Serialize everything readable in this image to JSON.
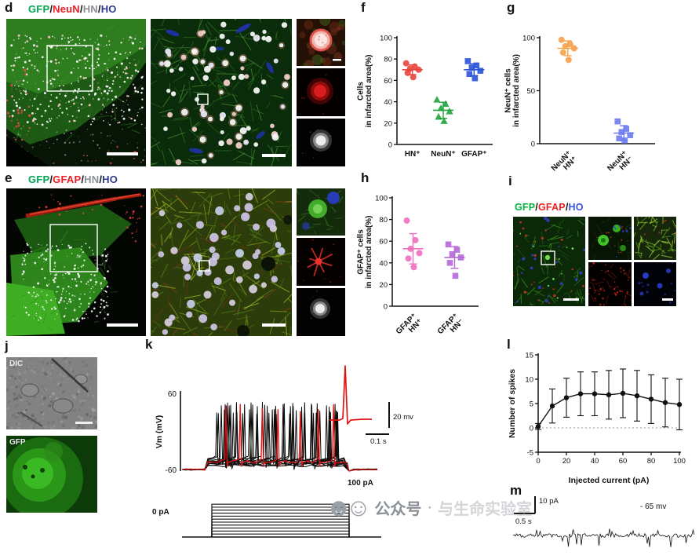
{
  "figure": {
    "background": "#ffffff",
    "panels": {
      "d": {
        "label": "d",
        "title": [
          {
            "text": "GFP",
            "color": "#00a651"
          },
          {
            "text": "/",
            "color": "#111111"
          },
          {
            "text": "NeuN",
            "color": "#ec1c24"
          },
          {
            "text": "/",
            "color": "#111111"
          },
          {
            "text": "HN",
            "color": "#8c8f93"
          },
          {
            "text": "/",
            "color": "#111111"
          },
          {
            "text": "HO",
            "color": "#2b3990"
          }
        ]
      },
      "e": {
        "label": "e",
        "title": [
          {
            "text": "GFP",
            "color": "#00a651"
          },
          {
            "text": "/",
            "color": "#111111"
          },
          {
            "text": "GFAP",
            "color": "#ec1c24"
          },
          {
            "text": "/",
            "color": "#111111"
          },
          {
            "text": "HN",
            "color": "#8c8f93"
          },
          {
            "text": "/",
            "color": "#111111"
          },
          {
            "text": "HO",
            "color": "#2b3990"
          }
        ]
      },
      "f": {
        "label": "f"
      },
      "g": {
        "label": "g"
      },
      "h": {
        "label": "h"
      },
      "i": {
        "label": "i",
        "title": [
          {
            "text": "GFP",
            "color": "#00b43c"
          },
          {
            "text": "/",
            "color": "#111111"
          },
          {
            "text": "GFAP",
            "color": "#ee2222"
          },
          {
            "text": "/",
            "color": "#111111"
          },
          {
            "text": "HO",
            "color": "#3a50e8"
          }
        ]
      },
      "j": {
        "label": "j",
        "dic_label": "DIC",
        "gfp_label": "GFP"
      },
      "k": {
        "label": "k",
        "y_axis_label": "Vm (mV)",
        "y_top_tick": "60",
        "y_bottom_tick": "-60",
        "inset_scale_voltage": "20 mv",
        "inset_scale_time": "0.1 s",
        "current_top_label": "100 pA",
        "current_base_label": "0 pA"
      },
      "l": {
        "label": "l"
      },
      "m": {
        "label": "m",
        "scale_current": "10 pA",
        "scale_time": "0.5 s",
        "baseline_label": "- 65 mv"
      }
    },
    "watermark": {
      "icons": "☻☺",
      "text": "公众号",
      "separator": "·",
      "faint_text": "与生命实验室"
    }
  },
  "chart_data": [
    {
      "id": "f",
      "type": "scatter",
      "title": "",
      "ylabel": "Cells\nin infarcted area(%)",
      "xlabel": "",
      "ylim": [
        0,
        100
      ],
      "yticks": [
        0,
        20,
        40,
        60,
        80,
        100
      ],
      "rotate_labels": false,
      "groups": [
        {
          "label": "HN⁺",
          "marker": "circle",
          "color": "#e8453c",
          "values": [
            76,
            73,
            71,
            70,
            67,
            63
          ],
          "mean": 70,
          "sd": 4.5
        },
        {
          "label": "NeuN⁺",
          "marker": "triangle",
          "color": "#1fa33c",
          "values": [
            42,
            38,
            34,
            31,
            26,
            22
          ],
          "mean": 32,
          "sd": 7.5
        },
        {
          "label": "GFAP⁺",
          "marker": "square",
          "color": "#2a52d8",
          "values": [
            78,
            74,
            72,
            69,
            66,
            62
          ],
          "mean": 70,
          "sd": 5.5
        }
      ]
    },
    {
      "id": "g",
      "type": "scatter",
      "title": "",
      "ylabel": "NeuN⁺ cells\nin infarcted area(%)",
      "xlabel": "",
      "ylim": [
        0,
        100
      ],
      "yticks": [
        0,
        50,
        100
      ],
      "rotate_labels": true,
      "groups": [
        {
          "label": "NeuN⁺\nHN⁺",
          "marker": "circle",
          "color": "#f6a14a",
          "values": [
            98,
            94,
            92,
            90,
            86,
            79
          ],
          "mean": 90,
          "sd": 7
        },
        {
          "label": "NeuN⁺\nHN⁻",
          "marker": "square",
          "color": "#6b7bf0",
          "values": [
            21,
            14,
            11,
            8,
            5,
            3
          ],
          "mean": 10,
          "sd": 7
        }
      ]
    },
    {
      "id": "h",
      "type": "scatter",
      "title": "",
      "ylabel": "GFAP⁺ cells\nin infarcted area(%)",
      "xlabel": "",
      "ylim": [
        0,
        100
      ],
      "yticks": [
        0,
        20,
        40,
        60,
        80,
        100
      ],
      "rotate_labels": true,
      "groups": [
        {
          "label": "GFAP⁺\nHN⁺",
          "marker": "circle",
          "color": "#ef6fc0",
          "values": [
            79,
            61,
            53,
            49,
            44,
            36
          ],
          "mean": 53,
          "sd": 14
        },
        {
          "label": "GFAP⁺\nHN⁻",
          "marker": "square",
          "color": "#b468d6",
          "values": [
            57,
            52,
            48,
            45,
            40,
            28
          ],
          "mean": 45,
          "sd": 10
        }
      ]
    },
    {
      "id": "l",
      "type": "line",
      "title": "",
      "xlabel": "Injected current (pA)",
      "ylabel": "Number of spikes",
      "xlim": [
        0,
        100
      ],
      "xticks": [
        0,
        20,
        40,
        60,
        80,
        100
      ],
      "ylim": [
        -5,
        15
      ],
      "yticks": [
        -5,
        0,
        5,
        10,
        15
      ],
      "zero_line": true,
      "x": [
        0,
        10,
        20,
        30,
        40,
        50,
        60,
        70,
        80,
        90,
        100
      ],
      "y": [
        0.3,
        4.5,
        6.2,
        7.0,
        7.0,
        6.8,
        7.1,
        6.6,
        5.9,
        5.2,
        4.8
      ],
      "yerr": [
        0.6,
        3.5,
        4.0,
        4.5,
        4.5,
        5.0,
        5.0,
        5.2,
        5.0,
        5.0,
        5.2
      ]
    }
  ]
}
